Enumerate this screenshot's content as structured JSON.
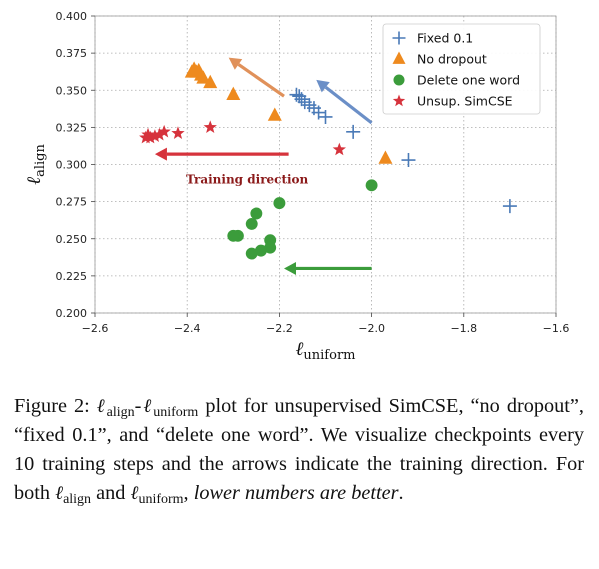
{
  "chart_data": {
    "type": "scatter",
    "xlabel": "ℓuniform",
    "ylabel": "ℓalign",
    "xlim": [
      -2.6,
      -1.6
    ],
    "ylim": [
      0.2,
      0.4
    ],
    "x_ticks": [
      -2.6,
      -2.4,
      -2.2,
      -2.0,
      -1.8,
      -1.6
    ],
    "y_ticks": [
      0.2,
      0.225,
      0.25,
      0.275,
      0.3,
      0.325,
      0.35,
      0.375,
      0.4
    ],
    "x_tick_labels": [
      "−2.6",
      "−2.4",
      "−2.2",
      "−2.0",
      "−1.8",
      "−1.6"
    ],
    "y_tick_labels": [
      "0.200",
      "0.225",
      "0.250",
      "0.275",
      "0.300",
      "0.325",
      "0.350",
      "0.375",
      "0.400"
    ],
    "grid": true,
    "legend_position": "top-right",
    "series": [
      {
        "name": "Fixed 0.1",
        "marker": "plus",
        "color": "#4a7ab7",
        "points": [
          [
            -1.7,
            0.272
          ],
          [
            -1.92,
            0.303
          ],
          [
            -2.04,
            0.322
          ],
          [
            -2.1,
            0.332
          ],
          [
            -2.115,
            0.335
          ],
          [
            -2.125,
            0.338
          ],
          [
            -2.135,
            0.34
          ],
          [
            -2.145,
            0.342
          ],
          [
            -2.152,
            0.344
          ],
          [
            -2.157,
            0.346
          ],
          [
            -2.163,
            0.347
          ]
        ]
      },
      {
        "name": "No dropout",
        "marker": "triangle",
        "color": "#ee8a1e",
        "points": [
          [
            -1.97,
            0.304
          ],
          [
            -2.21,
            0.333
          ],
          [
            -2.3,
            0.347
          ],
          [
            -2.35,
            0.355
          ],
          [
            -2.365,
            0.358
          ],
          [
            -2.37,
            0.36
          ],
          [
            -2.38,
            0.362
          ],
          [
            -2.385,
            0.363
          ],
          [
            -2.39,
            0.362
          ],
          [
            -2.385,
            0.364
          ],
          [
            -2.375,
            0.363
          ]
        ]
      },
      {
        "name": "Delete one word",
        "marker": "circle",
        "color": "#3b9c3b",
        "points": [
          [
            -2.0,
            0.286
          ],
          [
            -2.2,
            0.274
          ],
          [
            -2.25,
            0.267
          ],
          [
            -2.26,
            0.26
          ],
          [
            -2.29,
            0.252
          ],
          [
            -2.3,
            0.252
          ],
          [
            -2.22,
            0.249
          ],
          [
            -2.22,
            0.244
          ],
          [
            -2.24,
            0.242
          ],
          [
            -2.26,
            0.24
          ]
        ]
      },
      {
        "name": "Unsup. SimCSE",
        "marker": "star",
        "color": "#d6333c",
        "points": [
          [
            -2.07,
            0.31
          ],
          [
            -2.35,
            0.325
          ],
          [
            -2.42,
            0.321
          ],
          [
            -2.45,
            0.322
          ],
          [
            -2.46,
            0.32
          ],
          [
            -2.47,
            0.319
          ],
          [
            -2.48,
            0.318
          ],
          [
            -2.49,
            0.318
          ],
          [
            -2.485,
            0.32
          ]
        ]
      }
    ],
    "arrows": [
      {
        "name": "fixed-arrow",
        "color": "#6b8fc7",
        "from": [
          -2.0,
          0.328
        ],
        "to": [
          -2.12,
          0.357
        ]
      },
      {
        "name": "no-dropout-arrow",
        "color": "#e0915a",
        "from": [
          -2.19,
          0.346
        ],
        "to": [
          -2.31,
          0.372
        ]
      },
      {
        "name": "simcse-arrow",
        "color": "#d6333c",
        "from": [
          -2.18,
          0.307
        ],
        "to": [
          -2.47,
          0.307
        ]
      },
      {
        "name": "delete-word-arrow",
        "color": "#3b9c3b",
        "from": [
          -2.0,
          0.23
        ],
        "to": [
          -2.19,
          0.23
        ]
      }
    ],
    "annotation": {
      "text": "Training direction",
      "color": "#8b1a1a",
      "x": -2.27,
      "y": 0.29
    }
  },
  "caption": {
    "label": "Figure 2:",
    "text_1": "plot for unsupervised SimCSE, “no dropout”, “fixed 0.1”, and “delete one word”. We visualize checkpoints every 10 training steps and the arrows indicate the training direction. For both",
    "text_and": "and",
    "text_emph": "lower numbers are better",
    "sym_l": "ℓ",
    "sub_align": "align",
    "sub_uniform": "uniform"
  }
}
